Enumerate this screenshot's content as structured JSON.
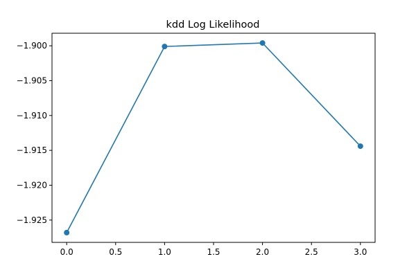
{
  "chart_data": {
    "type": "line",
    "title": "kdd Log Likelihood",
    "xlabel": "",
    "ylabel": "",
    "x": [
      0,
      1,
      2,
      3
    ],
    "series": [
      {
        "values": [
          -1.9268,
          -1.9001,
          -1.8996,
          -1.9144
        ],
        "color": "#1f77b4",
        "marker": "circle"
      }
    ],
    "xlim": [
      -0.15,
      3.15
    ],
    "ylim": [
      -1.9282,
      -1.8982
    ],
    "xticks": [
      0.0,
      0.5,
      1.0,
      1.5,
      2.0,
      2.5,
      3.0
    ],
    "xtick_labels": [
      "0.0",
      "0.5",
      "1.0",
      "1.5",
      "2.0",
      "2.5",
      "3.0"
    ],
    "yticks": [
      -1.925,
      -1.92,
      -1.915,
      -1.91,
      -1.905,
      -1.9
    ],
    "ytick_labels": [
      "−1.925",
      "−1.920",
      "−1.915",
      "−1.910",
      "−1.905",
      "−1.900"
    ],
    "grid": false,
    "legend": "none"
  }
}
